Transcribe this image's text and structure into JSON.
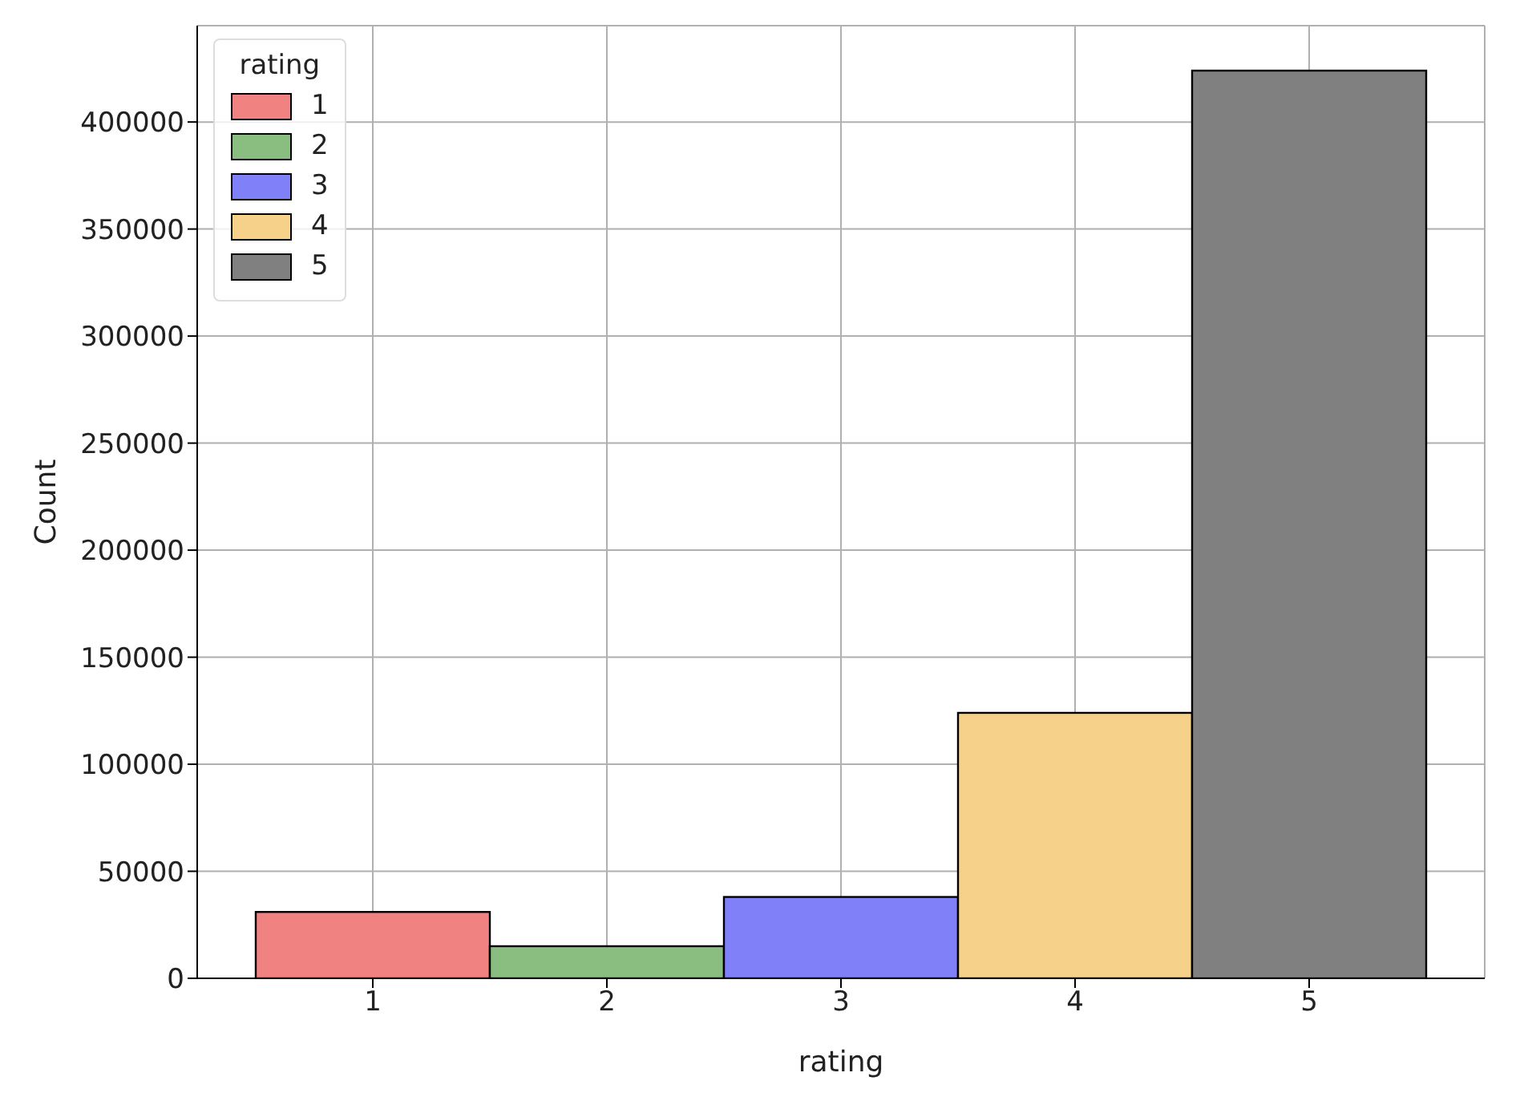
{
  "chart_data": {
    "type": "histogram",
    "xlabel": "rating",
    "ylabel": "Count",
    "legend_title": "rating",
    "bins": [
      0.5,
      1.5,
      2.5,
      3.5,
      4.5,
      5.5
    ],
    "series": [
      {
        "name": "1",
        "color": "#f08282",
        "values": [
          31000,
          null,
          null,
          null,
          null
        ]
      },
      {
        "name": "2",
        "color": "#8abd80",
        "values": [
          null,
          15000,
          null,
          null,
          null
        ]
      },
      {
        "name": "3",
        "color": "#8080f8",
        "values": [
          null,
          null,
          38000,
          null,
          null
        ]
      },
      {
        "name": "4",
        "color": "#f5d18a",
        "values": [
          null,
          null,
          null,
          124000,
          null
        ]
      },
      {
        "name": "5",
        "color": "#808080",
        "values": [
          null,
          null,
          null,
          null,
          424000
        ]
      }
    ],
    "xlim": [
      0.25,
      5.75
    ],
    "xticks": [
      1,
      2,
      3,
      4,
      5
    ],
    "ylim": [
      0,
      445000
    ],
    "yticks": [
      0,
      50000,
      100000,
      150000,
      200000,
      250000,
      300000,
      350000,
      400000
    ],
    "grid": true,
    "legend": "top left"
  }
}
